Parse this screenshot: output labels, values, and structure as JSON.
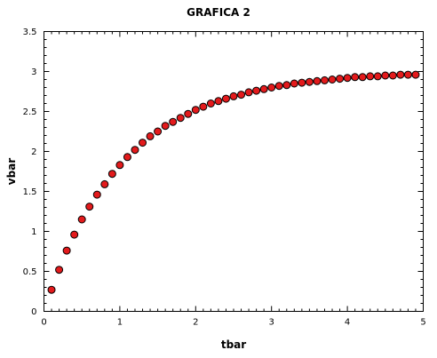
{
  "chart_data": {
    "type": "scatter",
    "title": "GRAFICA 2",
    "xlabel": "tbar",
    "ylabel": "vbar",
    "xlim": [
      0,
      5
    ],
    "ylim": [
      0,
      3.5
    ],
    "grid": false,
    "x_ticks": [
      "0",
      "1",
      "2",
      "3",
      "4",
      "5"
    ],
    "y_ticks": [
      "0",
      "0.5",
      "1",
      "1.5",
      "2",
      "2.5",
      "3",
      "3.5"
    ],
    "marker_color": "#e31a1c",
    "marker_edge": "#000000",
    "series": [
      {
        "x": [
          0.1,
          0.2,
          0.3,
          0.4,
          0.5,
          0.6,
          0.7,
          0.8,
          0.9,
          1.0,
          1.1,
          1.2,
          1.3,
          1.4,
          1.5,
          1.6,
          1.7,
          1.8,
          1.9,
          2.0,
          2.1,
          2.2,
          2.3,
          2.4,
          2.5,
          2.6,
          2.7,
          2.8,
          2.9,
          3.0,
          3.1,
          3.2,
          3.3,
          3.4,
          3.5,
          3.6,
          3.7,
          3.8,
          3.9,
          4.0,
          4.1,
          4.2,
          4.3,
          4.4,
          4.5,
          4.6,
          4.7,
          4.8,
          4.9
        ],
        "y": [
          0.27,
          0.52,
          0.76,
          0.96,
          1.15,
          1.31,
          1.46,
          1.59,
          1.72,
          1.83,
          1.93,
          2.02,
          2.11,
          2.19,
          2.25,
          2.32,
          2.37,
          2.42,
          2.47,
          2.52,
          2.56,
          2.6,
          2.63,
          2.66,
          2.69,
          2.71,
          2.74,
          2.76,
          2.78,
          2.8,
          2.82,
          2.83,
          2.85,
          2.86,
          2.87,
          2.88,
          2.89,
          2.9,
          2.91,
          2.92,
          2.93,
          2.93,
          2.94,
          2.94,
          2.95,
          2.95,
          2.96,
          2.96,
          2.96
        ]
      }
    ]
  }
}
